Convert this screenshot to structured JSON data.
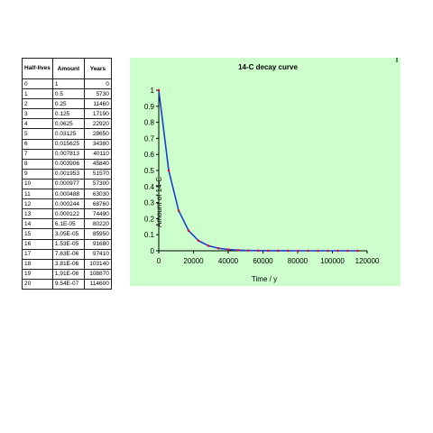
{
  "table": {
    "headers": {
      "half_lives": "Half-lives",
      "amount": "Amount",
      "years": "Years"
    },
    "rows": [
      {
        "n": "0",
        "amount": "1",
        "years": "0"
      },
      {
        "n": "1",
        "amount": "0.5",
        "years": "5730"
      },
      {
        "n": "2",
        "amount": "0.25",
        "years": "11460"
      },
      {
        "n": "3",
        "amount": "0.125",
        "years": "17190"
      },
      {
        "n": "4",
        "amount": "0.0625",
        "years": "22920"
      },
      {
        "n": "5",
        "amount": "0.03125",
        "years": "28650"
      },
      {
        "n": "6",
        "amount": "0.015625",
        "years": "34380"
      },
      {
        "n": "7",
        "amount": "0.007813",
        "years": "40110"
      },
      {
        "n": "8",
        "amount": "0.003906",
        "years": "45840"
      },
      {
        "n": "9",
        "amount": "0.001953",
        "years": "51570"
      },
      {
        "n": "10",
        "amount": "0.000977",
        "years": "57300"
      },
      {
        "n": "11",
        "amount": "0.000488",
        "years": "63030"
      },
      {
        "n": "12",
        "amount": "0.000244",
        "years": "68760"
      },
      {
        "n": "13",
        "amount": "0.000122",
        "years": "74490"
      },
      {
        "n": "14",
        "amount": "6.1E-05",
        "years": "80220"
      },
      {
        "n": "15",
        "amount": "3.05E-05",
        "years": "85950"
      },
      {
        "n": "16",
        "amount": "1.53E-05",
        "years": "91680"
      },
      {
        "n": "17",
        "amount": "7.63E-06",
        "years": "97410"
      },
      {
        "n": "18",
        "amount": "3.81E-06",
        "years": "103140"
      },
      {
        "n": "19",
        "amount": "1.91E-06",
        "years": "108870"
      },
      {
        "n": "20",
        "amount": "9.54E-07",
        "years": "114600"
      }
    ]
  },
  "chart_data": {
    "type": "line",
    "title": "14-C decay curve",
    "xlabel": "Time / y",
    "ylabel": "Amount of 14-C",
    "xlim": [
      0,
      120000
    ],
    "ylim": [
      0,
      1
    ],
    "x_ticks": [
      "0",
      "20000",
      "40000",
      "60000",
      "80000",
      "100000",
      "120000"
    ],
    "y_ticks": [
      "0",
      "0.1",
      "0.2",
      "0.3",
      "0.4",
      "0.5",
      "0.6",
      "0.7",
      "0.8",
      "0.9",
      "1"
    ],
    "grid": false,
    "legend": "none",
    "line_color": "#1f3fcf",
    "marker_color": "#e0102a",
    "background_color": "#ccffcc",
    "x": [
      0,
      5730,
      11460,
      17190,
      22920,
      28650,
      34380,
      40110,
      45840,
      51570,
      57300,
      63030,
      68760,
      74490,
      80220,
      85950,
      91680,
      97410,
      103140,
      108870,
      114600
    ],
    "y": [
      1,
      0.5,
      0.25,
      0.125,
      0.0625,
      0.03125,
      0.015625,
      0.007813,
      0.003906,
      0.001953,
      0.000977,
      0.000488,
      0.000244,
      0.000122,
      6.1e-05,
      3.05e-05,
      1.53e-05,
      7.63e-06,
      3.81e-06,
      1.91e-06,
      9.54e-07
    ]
  }
}
